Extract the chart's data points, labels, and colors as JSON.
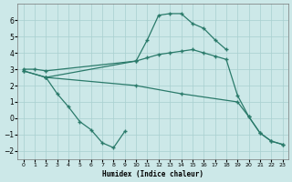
{
  "xlabel": "Humidex (Indice chaleur)",
  "xlim": [
    -0.5,
    23.5
  ],
  "ylim": [
    -2.5,
    7.0
  ],
  "yticks": [
    -2,
    -1,
    0,
    1,
    2,
    3,
    4,
    5,
    6
  ],
  "xticks": [
    0,
    1,
    2,
    3,
    4,
    5,
    6,
    7,
    8,
    9,
    10,
    11,
    12,
    13,
    14,
    15,
    16,
    17,
    18,
    19,
    20,
    21,
    22,
    23
  ],
  "bg_color": "#cce8e8",
  "line_color": "#2a7a6a",
  "grid_color": "#a8cfcf",
  "series": [
    {
      "x": [
        0,
        1,
        2,
        10,
        11,
        12,
        13,
        14,
        15,
        16,
        17,
        18
      ],
      "y": [
        3.0,
        3.0,
        2.9,
        3.5,
        4.8,
        6.3,
        6.4,
        6.4,
        5.8,
        5.5,
        4.8,
        4.2
      ]
    },
    {
      "x": [
        0,
        2,
        3,
        4,
        5,
        6,
        7,
        8,
        9
      ],
      "y": [
        2.9,
        2.5,
        1.5,
        0.7,
        -0.2,
        -0.7,
        -1.5,
        -1.8,
        -0.8
      ]
    },
    {
      "x": [
        0,
        2,
        10,
        14,
        19,
        20,
        21,
        22,
        23
      ],
      "y": [
        2.9,
        2.5,
        2.0,
        1.5,
        1.0,
        0.1,
        -0.9,
        -1.4,
        -1.6
      ]
    },
    {
      "x": [
        2,
        10,
        11,
        12,
        13,
        14,
        15,
        16,
        17,
        18,
        19,
        20,
        21,
        22,
        23
      ],
      "y": [
        2.5,
        3.5,
        3.7,
        3.9,
        4.0,
        4.1,
        4.2,
        4.0,
        3.8,
        3.6,
        1.4,
        0.1,
        -0.9,
        -1.4,
        -1.6
      ]
    }
  ]
}
